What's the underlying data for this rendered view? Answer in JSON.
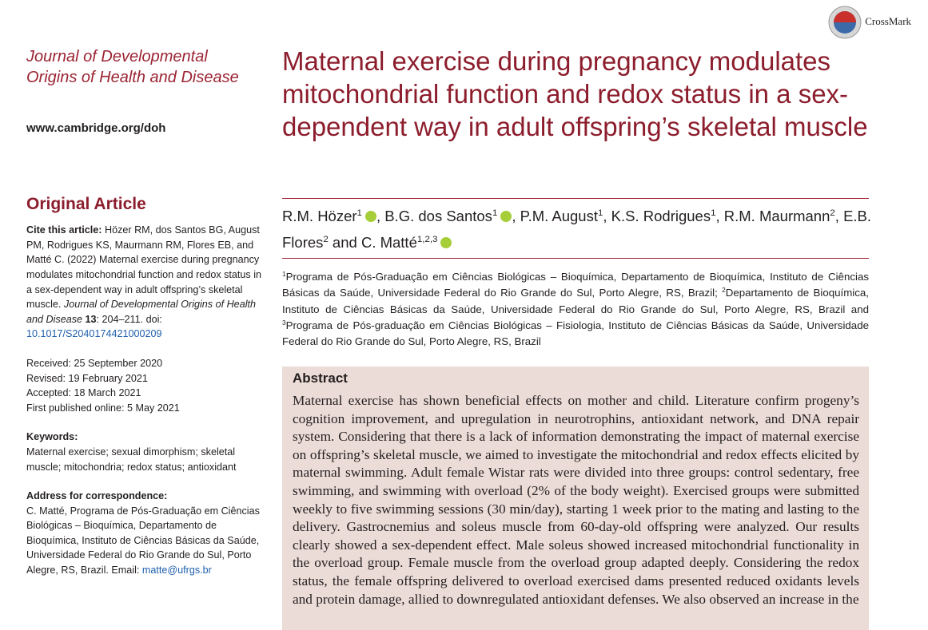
{
  "crossmark": "CrossMark",
  "journal": {
    "name": "Journal of Developmental Origins of Health and Disease",
    "url": "www.cambridge.org/doh"
  },
  "article_type": "Original Article",
  "cite": {
    "label": "Cite this article:",
    "text": "Hözer RM, dos Santos BG, August PM, Rodrigues KS, Maurmann RM, Flores EB, and Matté C. (2022) Maternal exercise during pregnancy modulates mitochondrial function and redox status in a sex-dependent way in adult offspring’s skeletal muscle.",
    "journal": "Journal of Developmental Origins of Health and Disease",
    "volume": "13",
    "pages": ": 204–211. doi: ",
    "doi": "10.1017/S2040174421000209"
  },
  "dates": [
    "Received: 25 September 2020",
    "Revised: 19 February 2021",
    "Accepted: 18 March 2021",
    "First published online: 5 May 2021"
  ],
  "keywords": {
    "label": "Keywords:",
    "text": "Maternal exercise; sexual dimorphism; skeletal muscle; mitochondria; redox status; antioxidant"
  },
  "address": {
    "label": "Address for correspondence:",
    "text": "C. Matté, Programa de Pós-Graduação em Ciências Biológicas – Bioquímica, Departamento de Bioquímica, Instituto de Ciências Básicas da Saúde, Universidade Federal do Rio Grande do Sul, Porto Alegre, RS, Brazil. Email: ",
    "email": "matte@ufrgs.br"
  },
  "title": "Maternal exercise during pregnancy modulates mitochondrial function and redox status in a sex-dependent way in adult offspring’s skeletal muscle",
  "authors": [
    {
      "name": "R.M. Hözer",
      "sup": "1",
      "orcid": true,
      "sep": ", "
    },
    {
      "name": "B.G. dos Santos",
      "sup": "1",
      "orcid": true,
      "sep": ", "
    },
    {
      "name": "P.M. August",
      "sup": "1",
      "orcid": false,
      "sep": ", "
    },
    {
      "name": "K.S. Rodrigues",
      "sup": "1",
      "orcid": false,
      "sep": ", "
    },
    {
      "name": "R.M. Maurmann",
      "sup": "2",
      "orcid": false,
      "sep": ", "
    },
    {
      "name": "E.B. Flores",
      "sup": "2",
      "orcid": false,
      "sep": " and "
    },
    {
      "name": "C. Matté",
      "sup": "1,2,3",
      "orcid": true
    }
  ],
  "affiliations": [
    {
      "sup": "1",
      "text": "Programa de Pós-Graduação em Ciências Biológicas – Bioquímica, Departamento de Bioquímica, Instituto de Ciências Básicas da Saúde, Universidade Federal do Rio Grande do Sul, Porto Alegre, RS, Brazil; "
    },
    {
      "sup": "2",
      "text": "Departamento de Bioquímica, Instituto de Ciências Básicas da Saúde, Universidade Federal do Rio Grande do Sul, Porto Alegre, RS, Brazil and "
    },
    {
      "sup": "3",
      "text": "Programa de Pós-graduação em Ciências Biológicas – Fisiologia, Instituto de Ciências Básicas da Saúde, Universidade Federal do Rio Grande do Sul, Porto Alegre, RS, Brazil"
    }
  ],
  "abstract": {
    "heading": "Abstract",
    "text": "Maternal exercise has shown beneficial effects on mother and child. Literature confirm progeny’s cognition improvement, and upregulation in neurotrophins, antioxidant network, and DNA repair system. Considering that there is a lack of information demonstrating the impact of maternal exercise on offspring’s skeletal muscle, we aimed to investigate the mitochondrial and redox effects elicited by maternal swimming. Adult female Wistar rats were divided into three groups: control sedentary, free swimming, and swimming with overload (2% of the body weight). Exercised groups were submitted weekly to five swimming sessions (30 min/day), starting 1 week prior to the mating and lasting to the delivery. Gastrocnemius and soleus muscle from 60-day-old offspring were analyzed. Our results clearly showed a sex-dependent effect. Male soleus showed increased mitochondrial functionality in the overload group. Female muscle from the overload group adapted deeply. Considering the redox status, the female offspring delivered to overload exercised dams presented reduced oxidants levels and protein damage, allied to downregulated antioxidant defenses. We also observed an increase in the"
  }
}
